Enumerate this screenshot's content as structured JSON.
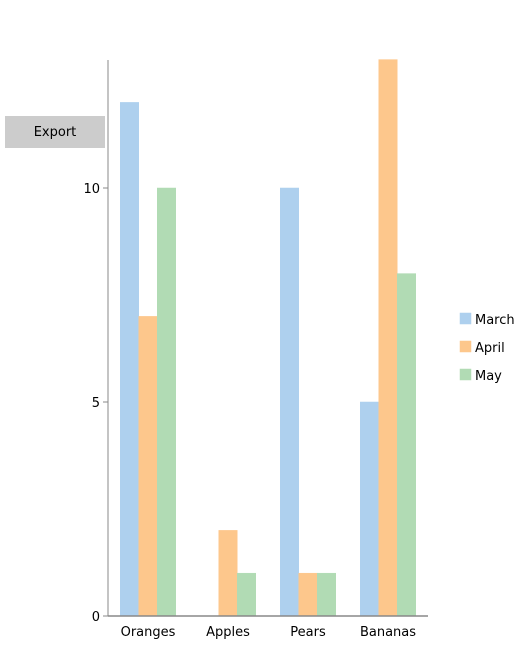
{
  "toolbar": {
    "export_label": "Export"
  },
  "chart_data": {
    "type": "bar",
    "categories": [
      "Oranges",
      "Apples",
      "Pears",
      "Bananas"
    ],
    "series": [
      {
        "name": "March",
        "values": [
          12,
          0,
          10,
          5
        ],
        "color": "#aed0ee"
      },
      {
        "name": "April",
        "values": [
          7,
          2,
          1,
          13
        ],
        "color": "#fdc78c"
      },
      {
        "name": "May",
        "values": [
          10,
          1,
          1,
          8
        ],
        "color": "#b1dbb4"
      }
    ],
    "yticks": [
      0,
      5,
      10
    ],
    "ylim": [
      0,
      13
    ],
    "grid": false,
    "legend_position": "right"
  }
}
